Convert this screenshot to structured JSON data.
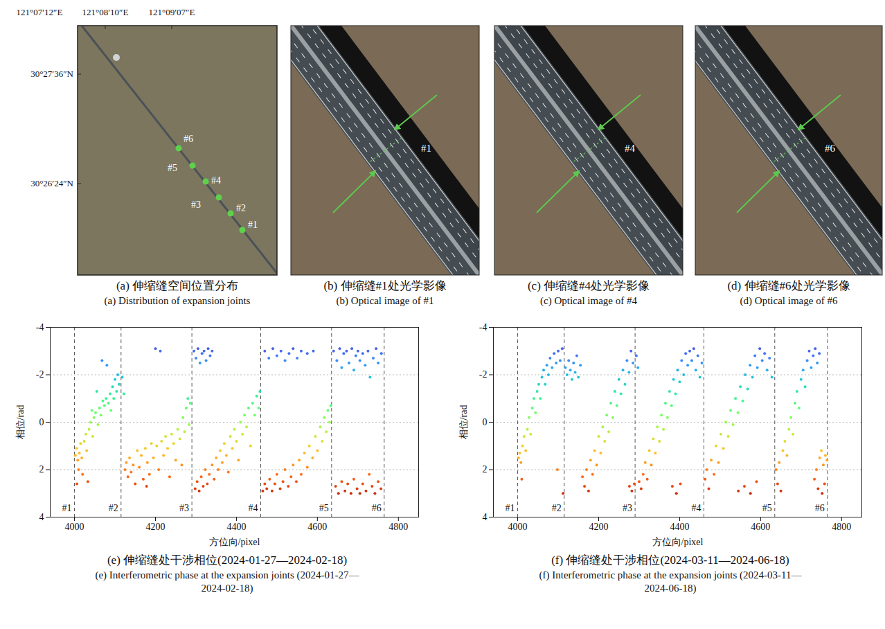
{
  "panels": [
    {
      "type": "map",
      "title": "(a) 伸缩缝空间位置分布",
      "subtitle": "(a) Distribution of expansion joints",
      "lon_labels": [
        "121°07′12″E",
        "121°08′10″E",
        "121°09′07″E"
      ],
      "lat_labels": [
        "30°27′36″N",
        "30°26′24″N"
      ],
      "joints": [
        "#1",
        "#2",
        "#3",
        "#4",
        "#5",
        "#6"
      ]
    },
    {
      "type": "optical",
      "title": "(b) 伸缩缝#1处光学影像",
      "subtitle": "(b) Optical image of #1",
      "joint": "#1"
    },
    {
      "type": "optical",
      "title": "(c) 伸缩缝#4处光学影像",
      "subtitle": "(c) Optical image of #4",
      "joint": "#4"
    },
    {
      "type": "optical",
      "title": "(d) 伸缩缝#6处光学影像",
      "subtitle": "(d) Optical image of #6",
      "joint": "#6"
    }
  ],
  "chart_data": [
    {
      "type": "scatter",
      "title": "(e) 伸缩缝处干涉相位(2024-01-27—2024-02-18)",
      "subtitle": "(e) Interferometric phase at the expansion joints (2024-01-27—2024-02-18)",
      "x_label": "方位向/pixel",
      "y_label": "相位/rad",
      "xlim": [
        3940,
        4850
      ],
      "xticks": [
        4000,
        4200,
        4400,
        4600,
        4800
      ],
      "ylim": [
        4,
        -4
      ],
      "yticks": [
        -4,
        -2,
        0,
        2,
        4
      ],
      "grid": true,
      "color": "turbo",
      "marker": "circle",
      "joints": [
        {
          "label": "#1",
          "x": 4000
        },
        {
          "label": "#2",
          "x": 4115
        },
        {
          "label": "#3",
          "x": 4290
        },
        {
          "label": "#4",
          "x": 4460
        },
        {
          "label": "#5",
          "x": 4635
        },
        {
          "label": "#6",
          "x": 4765
        }
      ],
      "x": [
        4002,
        4005,
        4006,
        4008,
        4010,
        4012,
        4015,
        4018,
        4020,
        4024,
        4028,
        4030,
        4033,
        4036,
        4040,
        4043,
        4045,
        4048,
        4052,
        4055,
        4058,
        4062,
        4065,
        4068,
        4070,
        4074,
        4078,
        4080,
        4084,
        4088,
        4090,
        4094,
        4097,
        4100,
        4104,
        4107,
        4110,
        4118,
        4122,
        4125,
        4128,
        4132,
        4136,
        4140,
        4145,
        4150,
        4155,
        4160,
        4165,
        4170,
        4175,
        4178,
        4180,
        4185,
        4190,
        4195,
        4200,
        4203,
        4208,
        4212,
        4215,
        4220,
        4225,
        4230,
        4235,
        4240,
        4245,
        4250,
        4255,
        4260,
        4265,
        4268,
        4272,
        4276,
        4280,
        4283,
        4286,
        4295,
        4300,
        4305,
        4310,
        4315,
        4320,
        4325,
        4330,
        4335,
        4340,
        4298,
        4303,
        4308,
        4313,
        4318,
        4323,
        4328,
        4333,
        4340,
        4345,
        4350,
        4355,
        4360,
        4365,
        4370,
        4375,
        4380,
        4385,
        4390,
        4395,
        4400,
        4405,
        4410,
        4415,
        4420,
        4425,
        4430,
        4435,
        4440,
        4445,
        4450,
        4455,
        4458,
        4470,
        4480,
        4490,
        4500,
        4510,
        4520,
        4530,
        4540,
        4550,
        4560,
        4575,
        4590,
        4465,
        4470,
        4475,
        4482,
        4488,
        4495,
        4500,
        4508,
        4515,
        4520,
        4528,
        4535,
        4540,
        4548,
        4555,
        4560,
        4568,
        4575,
        4580,
        4588,
        4595,
        4600,
        4607,
        4612,
        4617,
        4622,
        4626,
        4630,
        4633,
        4640,
        4648,
        4655,
        4660,
        4665,
        4672,
        4678,
        4685,
        4690,
        4695,
        4700,
        4705,
        4712,
        4718,
        4725,
        4730,
        4738,
        4745,
        4750,
        4758,
        4645,
        4652,
        4660,
        4668,
        4675,
        4683,
        4690,
        4698,
        4705,
        4712,
        4720,
        4728,
        4735,
        4742,
        4750,
        4757
      ],
      "values": [
        1.4,
        1.1,
        2.6,
        1.6,
        2.0,
        1.3,
        0.9,
        1.5,
        2.2,
        0.8,
        0.5,
        1.2,
        2.5,
        0.3,
        0.0,
        -0.5,
        0.6,
        -0.2,
        -0.4,
        -1.3,
        0.1,
        -0.6,
        -0.3,
        -2.6,
        -0.9,
        -0.7,
        -1.0,
        -2.4,
        -0.8,
        -1.2,
        -0.5,
        -1.5,
        -1.0,
        -1.8,
        -1.3,
        -2.0,
        -1.6,
        -1.9,
        -1.2,
        2.0,
        1.7,
        2.3,
        1.5,
        2.1,
        1.8,
        2.6,
        1.2,
        1.9,
        1.4,
        2.4,
        1.1,
        2.7,
        1.7,
        2.2,
        0.9,
        1.5,
        -3.1,
        1.0,
        2.0,
        -3.0,
        0.8,
        1.4,
        0.6,
        1.1,
        2.3,
        0.5,
        0.9,
        1.6,
        0.3,
        0.7,
        1.8,
        -0.2,
        0.4,
        -0.6,
        -1.0,
        0.1,
        -0.8,
        -3.0,
        -2.7,
        -3.1,
        -2.5,
        -2.9,
        -3.0,
        -2.6,
        -3.1,
        -2.8,
        -3.0,
        2.8,
        2.5,
        2.9,
        2.3,
        2.7,
        2.0,
        2.6,
        2.2,
        1.8,
        2.4,
        1.5,
        2.0,
        1.2,
        1.7,
        0.9,
        1.4,
        2.1,
        0.6,
        1.1,
        0.3,
        0.8,
        1.6,
        0.0,
        0.5,
        -0.3,
        0.2,
        -0.6,
        1.0,
        -0.8,
        -0.3,
        -1.1,
        -0.6,
        -1.3,
        -3.0,
        -2.7,
        -3.1,
        -2.8,
        -3.0,
        -2.6,
        -2.9,
        -3.1,
        -2.7,
        -3.0,
        -2.9,
        -3.0,
        2.9,
        2.6,
        2.8,
        2.4,
        2.9,
        2.6,
        2.2,
        2.8,
        2.5,
        2.0,
        2.7,
        2.3,
        1.8,
        2.5,
        1.6,
        2.2,
        1.3,
        1.9,
        1.0,
        1.5,
        0.6,
        1.2,
        0.2,
        0.8,
        -0.2,
        0.4,
        -0.5,
        0.0,
        -0.7,
        -3.0,
        -2.6,
        -3.1,
        -2.3,
        -2.9,
        -3.0,
        -2.5,
        -3.1,
        -2.2,
        -2.8,
        -3.0,
        -2.6,
        -2.9,
        -2.4,
        -3.0,
        -1.9,
        -2.7,
        -3.1,
        -2.5,
        -2.9,
        2.7,
        3.0,
        2.5,
        2.9,
        2.6,
        3.0,
        2.4,
        2.8,
        3.0,
        2.6,
        2.9,
        2.2,
        2.7,
        3.0,
        2.5,
        2.8
      ]
    },
    {
      "type": "scatter",
      "title": "(f) 伸缩缝处干涉相位(2024-03-11—2024-06-18)",
      "subtitle": "(f) Interferometric phase at the expansion joints (2024-03-11—2024-06-18)",
      "x_label": "方位向/pixel",
      "y_label": "相位/rad",
      "xlim": [
        3940,
        4850
      ],
      "xticks": [
        4000,
        4200,
        4400,
        4600,
        4800
      ],
      "ylim": [
        4,
        -4
      ],
      "yticks": [
        -4,
        -2,
        0,
        2,
        4
      ],
      "grid": true,
      "color": "turbo",
      "marker": "circle",
      "joints": [
        {
          "label": "#1",
          "x": 4000
        },
        {
          "label": "#2",
          "x": 4115
        },
        {
          "label": "#3",
          "x": 4290
        },
        {
          "label": "#4",
          "x": 4460
        },
        {
          "label": "#5",
          "x": 4635
        },
        {
          "label": "#6",
          "x": 4765
        }
      ],
      "x": [
        4002,
        4005,
        4008,
        4010,
        4012,
        4016,
        4020,
        4024,
        4028,
        4032,
        4036,
        4040,
        4044,
        4048,
        4052,
        4056,
        4060,
        4064,
        4068,
        4072,
        4076,
        4080,
        4085,
        4090,
        4095,
        4100,
        4105,
        4110,
        4098,
        4112,
        4118,
        4122,
        4126,
        4130,
        4134,
        4138,
        4142,
        4146,
        4150,
        4155,
        4160,
        4165,
        4170,
        4175,
        4180,
        4185,
        4190,
        4195,
        4200,
        4205,
        4210,
        4215,
        4220,
        4225,
        4230,
        4235,
        4240,
        4245,
        4250,
        4255,
        4260,
        4265,
        4270,
        4275,
        4280,
        4285,
        4276,
        4282,
        4288,
        4293,
        4297,
        4300,
        4305,
        4310,
        4315,
        4320,
        4325,
        4330,
        4335,
        4340,
        4345,
        4350,
        4355,
        4360,
        4365,
        4370,
        4375,
        4380,
        4385,
        4390,
        4395,
        4400,
        4405,
        4410,
        4415,
        4420,
        4425,
        4430,
        4435,
        4440,
        4445,
        4450,
        4455,
        4382,
        4392,
        4402,
        4463,
        4467,
        4472,
        4478,
        4485,
        4490,
        4496,
        4502,
        4508,
        4514,
        4520,
        4526,
        4532,
        4538,
        4544,
        4550,
        4556,
        4562,
        4568,
        4574,
        4580,
        4586,
        4592,
        4598,
        4604,
        4610,
        4616,
        4622,
        4628,
        4545,
        4560,
        4575,
        4590,
        4638,
        4642,
        4646,
        4650,
        4655,
        4660,
        4665,
        4670,
        4675,
        4680,
        4685,
        4690,
        4695,
        4700,
        4705,
        4710,
        4715,
        4720,
        4725,
        4730,
        4735,
        4740,
        4745,
        4733,
        4738,
        4746,
        4750,
        4755,
        4760,
        4742,
        4752,
        4758,
        4764
      ],
      "values": [
        1.5,
        1.3,
        1.7,
        2.4,
        1.0,
        0.6,
        1.2,
        0.3,
        -0.2,
        0.5,
        -0.6,
        -1.0,
        -0.4,
        -1.3,
        -1.6,
        -1.0,
        -1.9,
        -2.2,
        -1.6,
        -2.4,
        -2.0,
        -2.7,
        -2.3,
        -2.9,
        -2.5,
        -3.0,
        -2.6,
        -3.1,
        2.0,
        3.0,
        -2.3,
        -2.0,
        -2.6,
        -2.2,
        -1.8,
        -2.5,
        -2.1,
        -2.8,
        -1.9,
        -2.4,
        2.3,
        2.7,
        2.0,
        2.9,
        1.6,
        2.2,
        1.2,
        1.8,
        0.6,
        1.3,
        0.2,
        0.8,
        -0.3,
        0.4,
        -0.8,
        -0.2,
        -1.3,
        -0.7,
        -1.8,
        -1.2,
        -2.2,
        -1.6,
        -2.6,
        -2.1,
        -3.0,
        -2.5,
        2.7,
        2.9,
        2.6,
        -2.8,
        -2.3,
        2.5,
        2.8,
        2.2,
        1.7,
        2.4,
        1.2,
        1.8,
        0.7,
        1.3,
        0.2,
        0.8,
        -0.3,
        0.3,
        -0.8,
        -0.2,
        -1.3,
        -0.7,
        -1.8,
        -1.2,
        -2.2,
        -1.7,
        -2.6,
        -2.0,
        -2.9,
        -2.4,
        -3.0,
        -2.6,
        -3.1,
        -2.2,
        -2.8,
        -1.9,
        -2.5,
        2.7,
        3.0,
        2.6,
        2.4,
        2.0,
        2.8,
        1.6,
        2.2,
        1.0,
        1.7,
        0.5,
        1.1,
        0.0,
        0.6,
        -0.5,
        0.1,
        -1.0,
        -0.4,
        -1.5,
        -0.9,
        -2.0,
        -1.4,
        -2.4,
        -1.9,
        -2.8,
        -2.3,
        -3.1,
        -2.6,
        -2.9,
        -2.2,
        -2.7,
        -1.9,
        2.9,
        2.7,
        3.0,
        2.5,
        2.0,
        2.6,
        1.7,
        2.9,
        1.2,
        0.8,
        1.4,
        0.3,
        -0.2,
        0.5,
        -0.8,
        -1.3,
        -0.6,
        -1.8,
        -2.2,
        -1.5,
        -2.6,
        -3.0,
        -2.3,
        -2.8,
        -3.1,
        -2.5,
        -2.9,
        2.4,
        2.0,
        1.5,
        1.2,
        1.8,
        1.4,
        2.8,
        3.0,
        2.6,
        1.6
      ]
    }
  ]
}
